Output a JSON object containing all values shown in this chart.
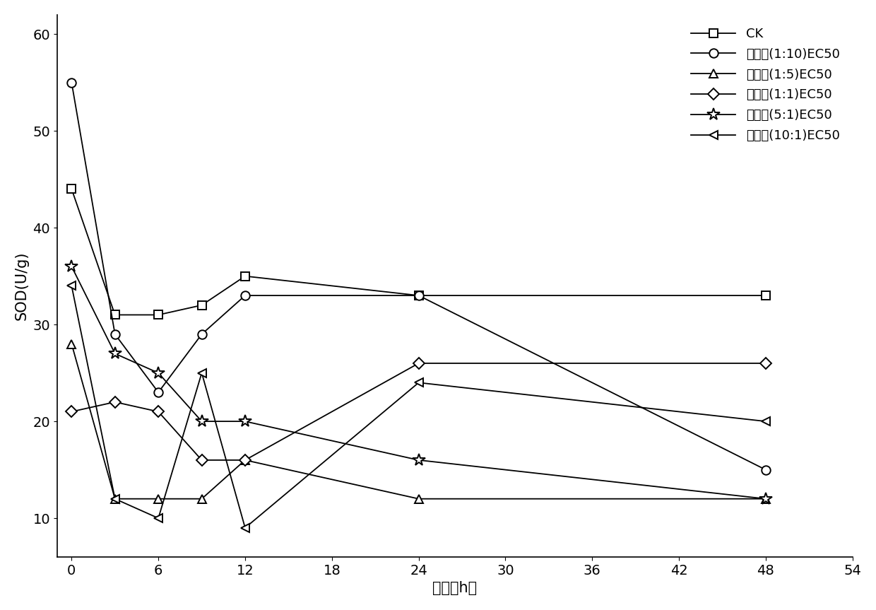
{
  "x_ticks": [
    0,
    6,
    12,
    18,
    24,
    30,
    36,
    42,
    48,
    54
  ],
  "xlabel": "时间（h）",
  "ylabel": "SOD(U/g)",
  "ylim": [
    6,
    62
  ],
  "xlim": [
    -1,
    54
  ],
  "yticks": [
    10,
    20,
    30,
    40,
    50,
    60
  ],
  "series": [
    {
      "label": "CK",
      "marker": "s",
      "x": [
        0,
        3,
        6,
        9,
        12,
        24,
        48
      ],
      "y": [
        44,
        31,
        31,
        32,
        35,
        33,
        33
      ],
      "color": "#000000",
      "linestyle": "-"
    },
    {
      "label": "丙：肏(1:10)EC50",
      "marker": "o",
      "x": [
        0,
        3,
        6,
        9,
        12,
        24,
        48
      ],
      "y": [
        55,
        29,
        23,
        29,
        33,
        33,
        15
      ],
      "color": "#000000",
      "linestyle": "-"
    },
    {
      "label": "丙：肏(1:5)EC50",
      "marker": "^",
      "x": [
        0,
        3,
        6,
        9,
        12,
        24,
        48
      ],
      "y": [
        28,
        12,
        12,
        12,
        16,
        12,
        12
      ],
      "color": "#000000",
      "linestyle": "-"
    },
    {
      "label": "丙：肏(1:1)EC50",
      "marker": "D",
      "x": [
        0,
        3,
        6,
        9,
        12,
        24,
        48
      ],
      "y": [
        21,
        22,
        21,
        16,
        16,
        26,
        26
      ],
      "color": "#000000",
      "linestyle": "-"
    },
    {
      "label": "丙：肏(5:1)EC50",
      "marker": "*",
      "x": [
        0,
        3,
        6,
        9,
        12,
        24,
        48
      ],
      "y": [
        36,
        27,
        25,
        20,
        20,
        16,
        12
      ],
      "color": "#000000",
      "linestyle": "-"
    },
    {
      "label": "丙：肏(10:1)EC50",
      "marker": "<",
      "x": [
        0,
        3,
        6,
        9,
        12,
        24,
        48
      ],
      "y": [
        34,
        12,
        10,
        25,
        9,
        24,
        20
      ],
      "color": "#000000",
      "linestyle": "-"
    }
  ],
  "background_color": "#ffffff",
  "axis_fontsize": 15,
  "tick_fontsize": 14,
  "legend_fontsize": 13
}
